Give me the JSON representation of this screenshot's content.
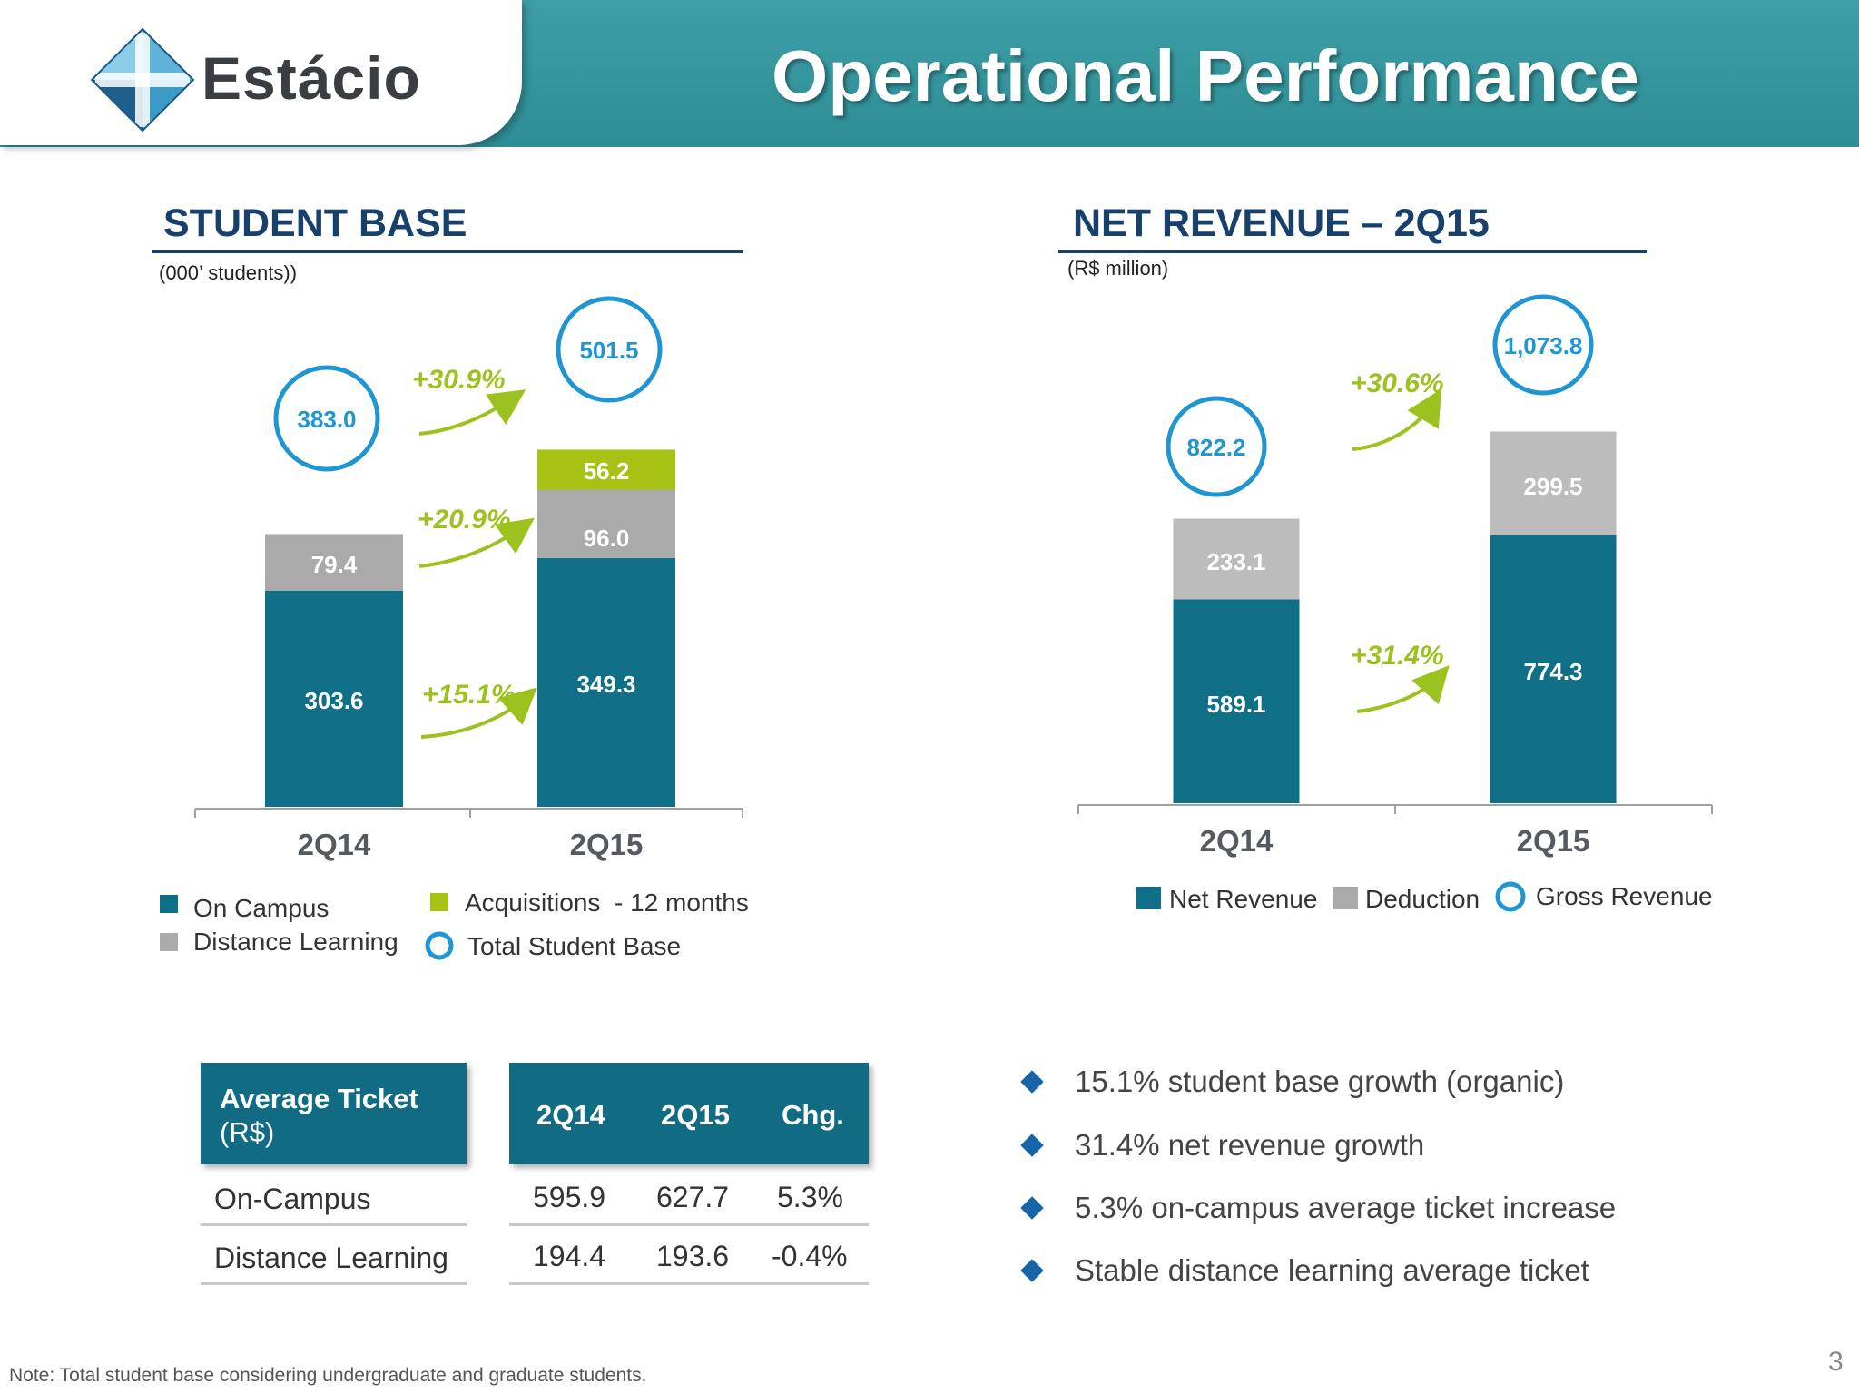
{
  "header": {
    "logo_text": "Estácio",
    "title": "Operational Performance"
  },
  "colors": {
    "on_campus": "#0f6f86",
    "distance": "#aaaaaa",
    "acquisitions": "#a7c212",
    "growth": "#9cc21f",
    "circle": "#1f95d1",
    "header": "#3a99a0",
    "title_text": "#17406a"
  },
  "chart_data": [
    {
      "type": "bar",
      "stacked": true,
      "title": "STUDENT BASE",
      "unit": "(000’ students))",
      "categories": [
        "2Q14",
        "2Q15"
      ],
      "series": [
        {
          "name": "On Campus",
          "values": [
            303.6,
            349.3
          ]
        },
        {
          "name": "Distance Learning",
          "values": [
            79.4,
            96.0
          ]
        },
        {
          "name": "Acquisitions  - 12 months",
          "values": [
            null,
            56.2
          ]
        }
      ],
      "totals": {
        "name": "Total Student Base",
        "values": [
          383.0,
          501.5
        ]
      },
      "growth_annotations": [
        "+30.9%",
        "+20.9%",
        "+15.1%"
      ],
      "legend": [
        {
          "label": "On Campus",
          "shape": "square",
          "color": "#0f6f86"
        },
        {
          "label": "Distance Learning",
          "shape": "square",
          "color": "#aaaaaa"
        },
        {
          "label": "Acquisitions  - 12 months",
          "shape": "square",
          "color": "#a7c212"
        },
        {
          "label": "Total Student Base",
          "shape": "circle",
          "color": "#1f95d1"
        }
      ],
      "legend_position": "bottom",
      "grid": false
    },
    {
      "type": "bar",
      "stacked": true,
      "title": "NET REVENUE – 2Q15",
      "unit": "(R$ million)",
      "categories": [
        "2Q14",
        "2Q15"
      ],
      "series": [
        {
          "name": "Net Revenue",
          "values": [
            589.1,
            774.3
          ]
        },
        {
          "name": "Deduction",
          "values": [
            233.1,
            299.5
          ]
        }
      ],
      "totals": {
        "name": "Gross Revenue",
        "values": [
          "822.2",
          "1,073.8"
        ]
      },
      "growth_annotations": [
        "+30.6%",
        "+31.4%"
      ],
      "legend": [
        {
          "label": "Net Revenue",
          "shape": "square",
          "color": "#0f6f86"
        },
        {
          "label": "Deduction",
          "shape": "square",
          "color": "#aaaaaa"
        },
        {
          "label": "Gross Revenue",
          "shape": "circle",
          "color": "#1f95d1"
        }
      ],
      "legend_position": "bottom",
      "grid": false
    }
  ],
  "ticket_table": {
    "title_line1": "Average Ticket",
    "title_line2": "(R$)",
    "columns": [
      "2Q14",
      "2Q15",
      "Chg."
    ],
    "rows": [
      {
        "label": "On-Campus",
        "values": [
          "595.9",
          "627.7",
          "5.3%"
        ]
      },
      {
        "label": "Distance Learning",
        "values": [
          "194.4",
          "193.6",
          "-0.4%"
        ]
      }
    ]
  },
  "bullets": [
    "15.1% student base growth (organic)",
    "31.4% net revenue growth",
    "5.3% on-campus average ticket increase",
    "Stable distance learning average ticket"
  ],
  "footnote": "Note: Total student base considering undergraduate and graduate students.",
  "page_number": "3"
}
